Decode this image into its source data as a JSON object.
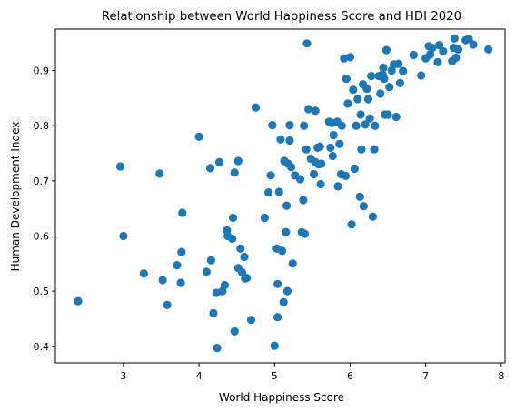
{
  "chart_data": {
    "type": "scatter",
    "title": "Relationship between World Happiness Score and HDI 2020",
    "xlabel": "World Happiness Score",
    "ylabel": "Human Development Index",
    "xlim": [
      2.1,
      8.05
    ],
    "ylim": [
      0.37,
      0.975
    ],
    "xticks": [
      3,
      4,
      5,
      6,
      7,
      8
    ],
    "yticks": [
      0.4,
      0.5,
      0.6,
      0.7,
      0.8,
      0.9
    ],
    "grid": false,
    "color": "#1f77b4",
    "points": [
      [
        2.4,
        0.482
      ],
      [
        2.96,
        0.726
      ],
      [
        3.0,
        0.6
      ],
      [
        3.27,
        0.532
      ],
      [
        3.48,
        0.713
      ],
      [
        3.52,
        0.52
      ],
      [
        3.58,
        0.475
      ],
      [
        3.71,
        0.547
      ],
      [
        3.76,
        0.515
      ],
      [
        3.77,
        0.571
      ],
      [
        3.78,
        0.642
      ],
      [
        4.0,
        0.78
      ],
      [
        4.1,
        0.535
      ],
      [
        4.15,
        0.723
      ],
      [
        4.16,
        0.556
      ],
      [
        4.19,
        0.46
      ],
      [
        4.23,
        0.497
      ],
      [
        4.24,
        0.397
      ],
      [
        4.27,
        0.734
      ],
      [
        4.31,
        0.5
      ],
      [
        4.34,
        0.511
      ],
      [
        4.37,
        0.61
      ],
      [
        4.38,
        0.6
      ],
      [
        4.44,
        0.595
      ],
      [
        4.45,
        0.633
      ],
      [
        4.47,
        0.715
      ],
      [
        4.47,
        0.427
      ],
      [
        4.52,
        0.736
      ],
      [
        4.52,
        0.542
      ],
      [
        4.55,
        0.577
      ],
      [
        4.57,
        0.534
      ],
      [
        4.6,
        0.562
      ],
      [
        4.61,
        0.523
      ],
      [
        4.63,
        0.524
      ],
      [
        4.69,
        0.448
      ],
      [
        4.75,
        0.833
      ],
      [
        4.87,
        0.633
      ],
      [
        4.92,
        0.679
      ],
      [
        4.95,
        0.71
      ],
      [
        4.97,
        0.801
      ],
      [
        5.0,
        0.401
      ],
      [
        5.03,
        0.577
      ],
      [
        5.04,
        0.513
      ],
      [
        5.04,
        0.453
      ],
      [
        5.06,
        0.68
      ],
      [
        5.08,
        0.775
      ],
      [
        5.1,
        0.573
      ],
      [
        5.12,
        0.48
      ],
      [
        5.13,
        0.736
      ],
      [
        5.15,
        0.607
      ],
      [
        5.16,
        0.655
      ],
      [
        5.17,
        0.5
      ],
      [
        5.18,
        0.731
      ],
      [
        5.2,
        0.773
      ],
      [
        5.2,
        0.801
      ],
      [
        5.22,
        0.725
      ],
      [
        5.24,
        0.55
      ],
      [
        5.27,
        0.71
      ],
      [
        5.34,
        0.703
      ],
      [
        5.36,
        0.607
      ],
      [
        5.38,
        0.665
      ],
      [
        5.39,
        0.8
      ],
      [
        5.4,
        0.604
      ],
      [
        5.42,
        0.757
      ],
      [
        5.43,
        0.949
      ],
      [
        5.45,
        0.83
      ],
      [
        5.48,
        0.74
      ],
      [
        5.52,
        0.712
      ],
      [
        5.54,
        0.827
      ],
      [
        5.54,
        0.734
      ],
      [
        5.57,
        0.76
      ],
      [
        5.58,
        0.73
      ],
      [
        5.6,
        0.762
      ],
      [
        5.61,
        0.694
      ],
      [
        5.62,
        0.731
      ],
      [
        5.72,
        0.807
      ],
      [
        5.74,
        0.76
      ],
      [
        5.76,
        0.805
      ],
      [
        5.77,
        0.745
      ],
      [
        5.78,
        0.783
      ],
      [
        5.83,
        0.807
      ],
      [
        5.84,
        0.69
      ],
      [
        5.86,
        0.767
      ],
      [
        5.88,
        0.712
      ],
      [
        5.89,
        0.8
      ],
      [
        5.92,
        0.922
      ],
      [
        5.94,
        0.709
      ],
      [
        5.95,
        0.885
      ],
      [
        5.97,
        0.84
      ],
      [
        6.0,
        0.924
      ],
      [
        6.02,
        0.621
      ],
      [
        6.04,
        0.865
      ],
      [
        6.06,
        0.722
      ],
      [
        6.08,
        0.8
      ],
      [
        6.1,
        0.848
      ],
      [
        6.13,
        0.671
      ],
      [
        6.14,
        0.82
      ],
      [
        6.15,
        0.757
      ],
      [
        6.17,
        0.875
      ],
      [
        6.18,
        0.654
      ],
      [
        6.2,
        0.802
      ],
      [
        6.22,
        0.867
      ],
      [
        6.24,
        0.848
      ],
      [
        6.26,
        0.813
      ],
      [
        6.28,
        0.89
      ],
      [
        6.3,
        0.635
      ],
      [
        6.32,
        0.757
      ],
      [
        6.33,
        0.8
      ],
      [
        6.38,
        0.89
      ],
      [
        6.4,
        0.858
      ],
      [
        6.43,
        0.893
      ],
      [
        6.44,
        0.905
      ],
      [
        6.45,
        0.885
      ],
      [
        6.46,
        0.82
      ],
      [
        6.48,
        0.937
      ],
      [
        6.5,
        0.82
      ],
      [
        6.52,
        0.87
      ],
      [
        6.55,
        0.9
      ],
      [
        6.58,
        0.911
      ],
      [
        6.61,
        0.816
      ],
      [
        6.64,
        0.912
      ],
      [
        6.66,
        0.877
      ],
      [
        6.7,
        0.899
      ],
      [
        6.84,
        0.928
      ],
      [
        6.94,
        0.891
      ],
      [
        7.0,
        0.922
      ],
      [
        7.04,
        0.944
      ],
      [
        7.06,
        0.929
      ],
      [
        7.09,
        0.941
      ],
      [
        7.16,
        0.915
      ],
      [
        7.18,
        0.946
      ],
      [
        7.23,
        0.935
      ],
      [
        7.35,
        0.917
      ],
      [
        7.37,
        0.941
      ],
      [
        7.38,
        0.958
      ],
      [
        7.4,
        0.923
      ],
      [
        7.43,
        0.938
      ],
      [
        7.53,
        0.955
      ],
      [
        7.57,
        0.957
      ],
      [
        7.63,
        0.947
      ],
      [
        7.83,
        0.938
      ]
    ]
  }
}
